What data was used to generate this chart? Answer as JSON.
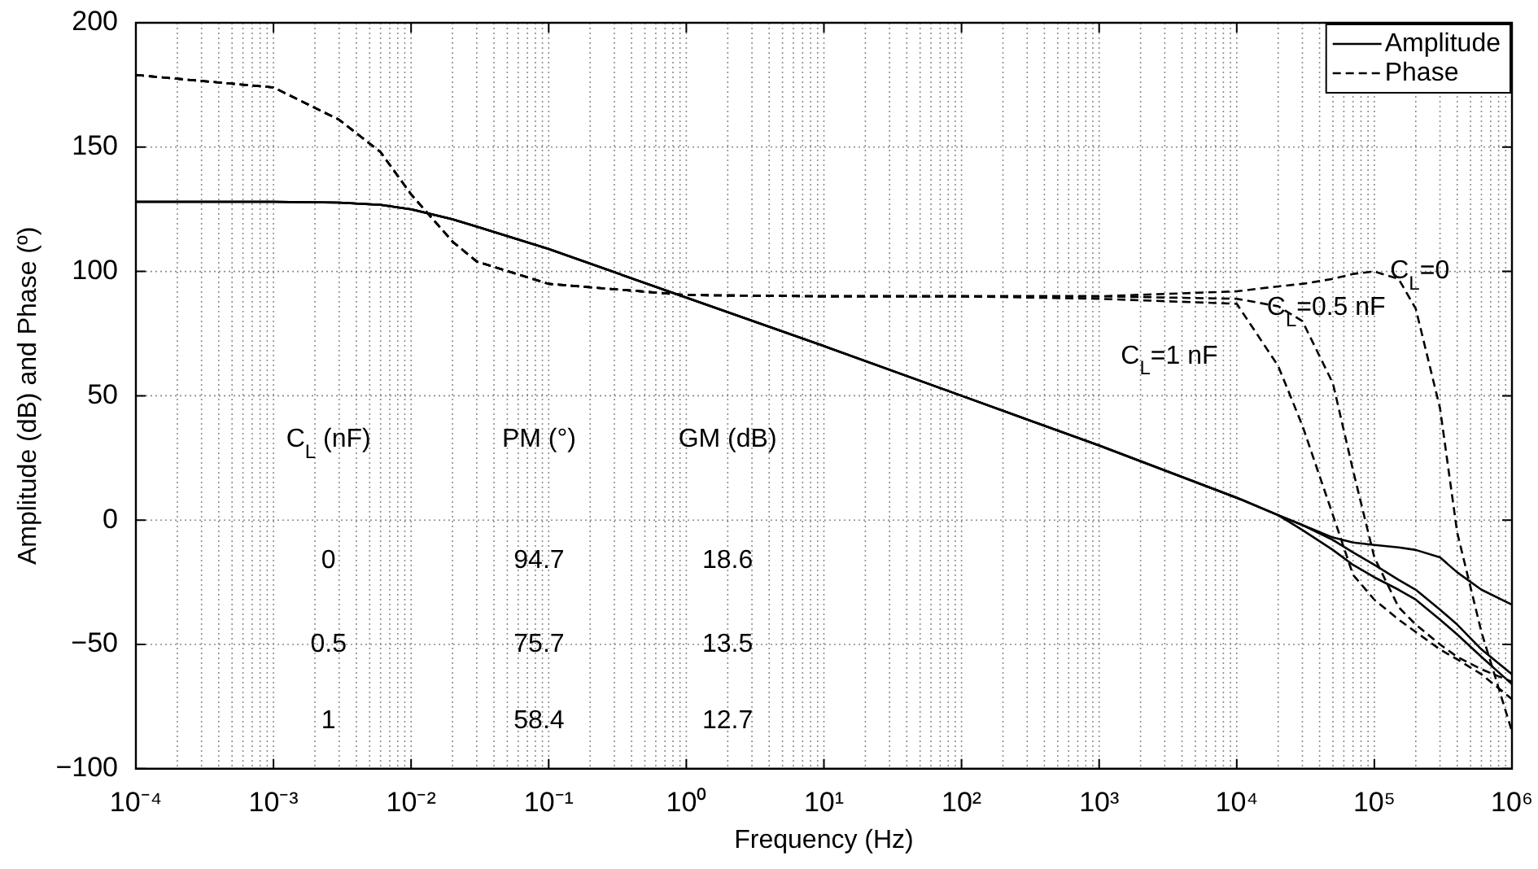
{
  "chart_data": {
    "type": "line",
    "xlabel": "Frequency (Hz)",
    "ylabel": "Amplitude (dB) and Phase (º)",
    "log": "x",
    "xlim": [
      0.0001,
      1000000
    ],
    "xticks": [
      {
        "value": 0.0001,
        "label": "10⁻⁴"
      },
      {
        "value": 0.001,
        "label": "10⁻³"
      },
      {
        "value": 0.01,
        "label": "10⁻²"
      },
      {
        "value": 0.1,
        "label": "10⁻¹"
      },
      {
        "value": 1,
        "label": "10⁰"
      },
      {
        "value": 10,
        "label": "10¹"
      },
      {
        "value": 100,
        "label": "10²"
      },
      {
        "value": 1000,
        "label": "10³"
      },
      {
        "value": 10000,
        "label": "10⁴"
      },
      {
        "value": 100000,
        "label": "10⁵"
      },
      {
        "value": 1000000,
        "label": "10⁶"
      }
    ],
    "ylim": [
      -100,
      200
    ],
    "yticks": [
      -100,
      -50,
      0,
      50,
      100,
      150,
      200
    ],
    "grid": true,
    "legend": "top right",
    "marker": "none",
    "x": [
      0.0001,
      0.001,
      0.003,
      0.006,
      0.01,
      0.02,
      0.03,
      0.1,
      1,
      10,
      100,
      1000,
      10000,
      20000,
      30000,
      50000,
      70000,
      100000,
      150000,
      200000,
      300000,
      400000,
      600000,
      1000000
    ],
    "series": [
      {
        "name": "Amplitude",
        "color": "#000000",
        "line_style": "solid",
        "values": [
          128,
          128,
          127.7,
          126.8,
          125,
          121,
          118,
          109,
          89.5,
          70,
          50,
          30,
          9,
          2,
          -2,
          -7,
          -9,
          -10,
          -11,
          -12,
          -15,
          -21,
          -28,
          -34
        ]
      },
      {
        "color": "#000000",
        "line_style": "solid",
        "values": [
          128,
          128,
          127.7,
          126.8,
          125,
          121,
          118,
          109,
          89.5,
          70,
          50,
          30,
          9,
          2,
          -2,
          -8,
          -13,
          -18,
          -24,
          -28,
          -36,
          -42,
          -52,
          -62
        ]
      },
      {
        "color": "#000000",
        "line_style": "solid",
        "values": [
          128,
          128,
          127.7,
          126.8,
          125,
          121,
          118,
          109,
          89.5,
          70,
          50,
          30,
          9,
          2,
          -4,
          -12,
          -18,
          -23,
          -28,
          -32,
          -40,
          -46,
          -55,
          -66
        ]
      },
      {
        "name": "Phase",
        "color": "#000000",
        "line_style": "dashed",
        "values": [
          179,
          174,
          161,
          148,
          131,
          112,
          104,
          95,
          90.5,
          90,
          90,
          90,
          92,
          94,
          95,
          97,
          99,
          100,
          97,
          85,
          45,
          -5,
          -45,
          -85
        ]
      },
      {
        "color": "#000000",
        "line_style": "dashed",
        "values": [
          179,
          174,
          161,
          148,
          131,
          112,
          104,
          95,
          90.5,
          90,
          90,
          90,
          89,
          86,
          80,
          55,
          20,
          -15,
          -35,
          -42,
          -50,
          -55,
          -60,
          -65
        ]
      },
      {
        "color": "#000000",
        "line_style": "dashed",
        "values": [
          179,
          174,
          161,
          148,
          131,
          112,
          104,
          95,
          90.5,
          90,
          90,
          89,
          87,
          62,
          38,
          2,
          -22,
          -32,
          -40,
          -45,
          -52,
          -56,
          -62,
          -72
        ]
      }
    ],
    "annotations": [
      "C$_{L}$=0",
      "C$_{L}$=0.5 nF",
      "C$_{L}$=1 nF",
      "C$_{L}$ (nF)",
      "PM (°)",
      "GM (dB)",
      "0",
      "94.7",
      "18.6",
      "0.5",
      "75.7",
      "13.5",
      "1",
      "58.4",
      "12.7"
    ]
  }
}
